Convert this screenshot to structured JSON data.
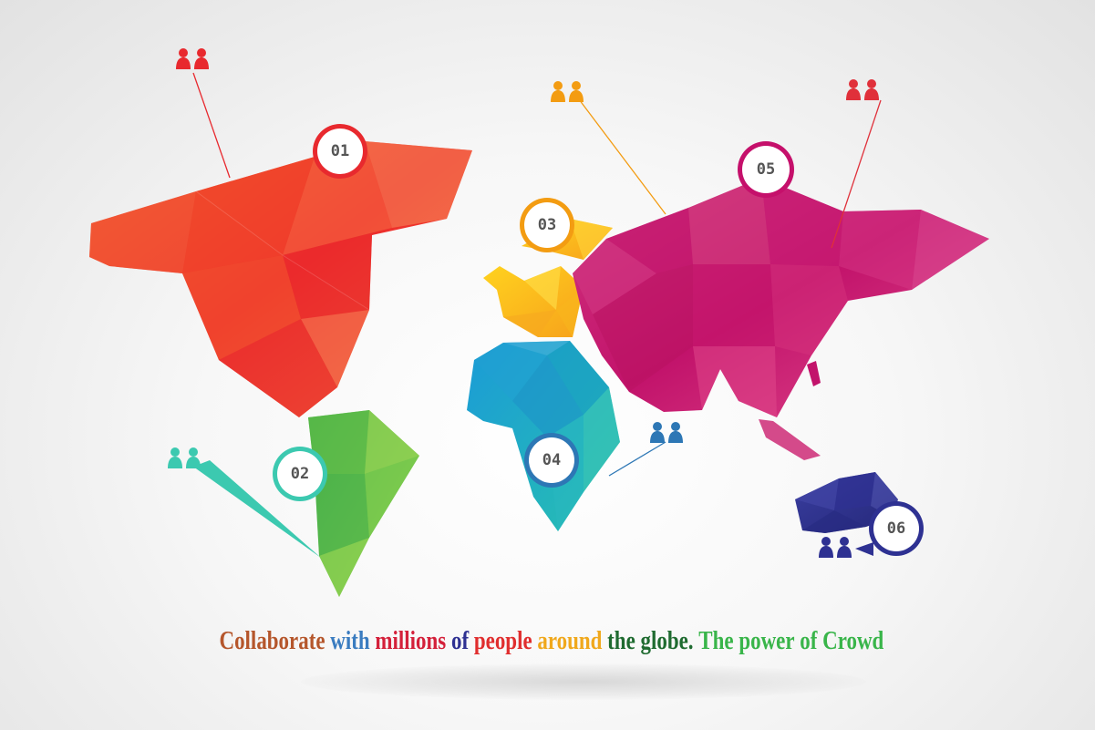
{
  "markers": [
    {
      "id": "01",
      "color": "#e8292e",
      "people_color": "#e8292e"
    },
    {
      "id": "02",
      "color": "#3cc9b0",
      "people_color": "#3cc9b0"
    },
    {
      "id": "03",
      "color": "#f39c12",
      "people_color": "#f39c12"
    },
    {
      "id": "04",
      "color": "#2d77b5",
      "people_color": "#2d77b5"
    },
    {
      "id": "05",
      "color": "#c5106b",
      "people_color": "#e0303a"
    },
    {
      "id": "06",
      "color": "#2e3192",
      "people_color": "#2e3192"
    }
  ],
  "continent_colors": {
    "north_america": "#ef3b2d",
    "south_america": "#5fbf4a",
    "europe": "#ffc21a",
    "africa": "#1a9fd0",
    "asia": "#c8146e",
    "australia": "#2e3192"
  },
  "tagline": [
    {
      "text": "Collaborate",
      "color": "#b5562b"
    },
    {
      "text": "with",
      "color": "#3a7cc0"
    },
    {
      "text": "millions",
      "color": "#d4203a"
    },
    {
      "text": "of",
      "color": "#2e3192"
    },
    {
      "text": "people",
      "color": "#e02e2e"
    },
    {
      "text": "around",
      "color": "#f0a81c"
    },
    {
      "text": "the",
      "color": "#1f6b30"
    },
    {
      "text": "globe.",
      "color": "#1f6b30"
    },
    {
      "text": "The",
      "color": "#39b54a"
    },
    {
      "text": "power",
      "color": "#39b54a"
    },
    {
      "text": "of",
      "color": "#39b54a"
    },
    {
      "text": "Crowd",
      "color": "#39b54a"
    }
  ]
}
